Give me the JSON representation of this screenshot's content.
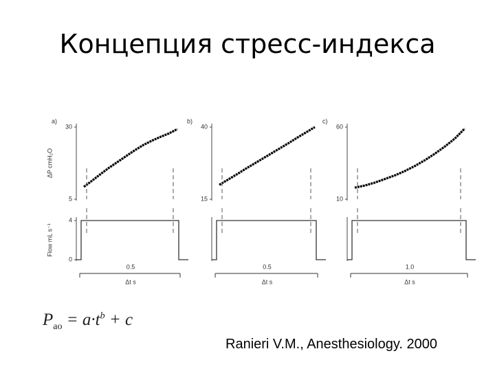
{
  "title": "Концепция стресс-индекса",
  "chart_data": [
    {
      "type": "line",
      "label": "a)",
      "ylabel": "ΔP cmH₂O",
      "ylim": [
        5,
        30
      ],
      "yticks": [
        5,
        30
      ],
      "values": [
        9.3,
        11.5,
        13.8,
        16,
        18,
        20,
        22,
        23.8,
        25.3,
        26.6,
        27.8,
        29.3
      ],
      "flow_ylabel": "Flow mL s⁻¹",
      "flow_ylim": [
        0,
        4
      ],
      "flow_yticks": [
        0,
        4
      ],
      "flow": 4,
      "duration": 0.5,
      "xlabel": "Δt s"
    },
    {
      "type": "line",
      "label": "b)",
      "ylim": [
        15,
        40
      ],
      "yticks": [
        15,
        40
      ],
      "values": [
        20,
        21.8,
        23.6,
        25.5,
        27.3,
        29.1,
        30.9,
        32.7,
        34.5,
        36.4,
        38.2,
        40
      ],
      "flow_ylim": [
        0,
        4
      ],
      "flow": 4,
      "duration": 0.5,
      "xlabel": "Δt s"
    },
    {
      "type": "line",
      "label": "c)",
      "ylim": [
        10,
        60
      ],
      "yticks": [
        10,
        60
      ],
      "values": [
        18,
        19.5,
        21.5,
        24,
        26.5,
        29.5,
        33,
        37,
        41.5,
        46.5,
        52,
        59
      ],
      "flow_ylim": [
        0,
        4
      ],
      "flow": 4,
      "duration": {
        "value": 1,
        "label": "1.0"
      },
      "xlabel": "Δt s"
    }
  ],
  "formula": {
    "lhs": "P",
    "lhs_sub": "ao",
    "rhs": "= a·t",
    "rhs_sup": "b",
    "tail": "+ c"
  },
  "citation": "Ranieri V.M., Anesthesiology. 2000"
}
